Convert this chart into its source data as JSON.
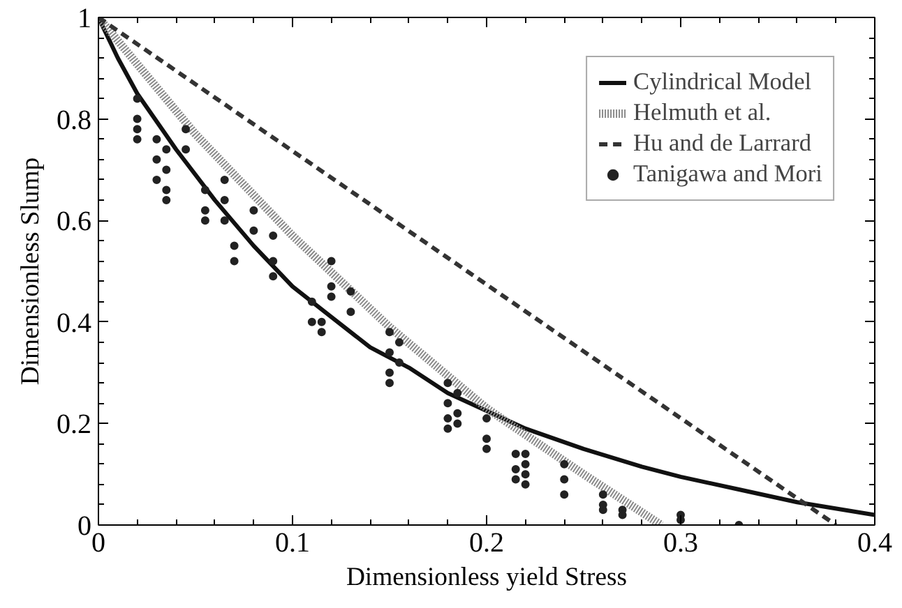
{
  "chart_data": {
    "type": "line",
    "xlabel": "Dimensionless yield Stress",
    "ylabel": "Dimensionless Slump",
    "xlim": [
      0,
      0.4
    ],
    "ylim": [
      0,
      1
    ],
    "xticks": [
      0,
      0.1,
      0.2,
      0.3,
      0.4
    ],
    "yticks": [
      0,
      0.2,
      0.4,
      0.6,
      0.8,
      1
    ],
    "grid": false,
    "legend": "top right",
    "series": [
      {
        "name": "Cylindrical Model",
        "line_style": "solid",
        "color": "#111111",
        "x": [
          0,
          0.01,
          0.02,
          0.04,
          0.06,
          0.08,
          0.1,
          0.12,
          0.14,
          0.16,
          0.18,
          0.2,
          0.22,
          0.25,
          0.28,
          0.3,
          0.33,
          0.36,
          0.4
        ],
        "values": [
          1,
          0.92,
          0.85,
          0.74,
          0.64,
          0.55,
          0.47,
          0.41,
          0.35,
          0.31,
          0.26,
          0.225,
          0.19,
          0.15,
          0.115,
          0.095,
          0.07,
          0.045,
          0.02
        ]
      },
      {
        "name": "Helmuth et al.",
        "line_style": "dotted",
        "color": "#8a8a8a",
        "x": [
          0,
          0.05,
          0.1,
          0.15,
          0.2,
          0.25,
          0.29
        ],
        "values": [
          1,
          0.77,
          0.57,
          0.39,
          0.23,
          0.1,
          0
        ]
      },
      {
        "name": "Hu and de Larrard",
        "line_style": "dashed",
        "color": "#333333",
        "x": [
          0,
          0.38
        ],
        "values": [
          1,
          0
        ]
      },
      {
        "name": "Tanigawa and Mori",
        "type": "scatter",
        "marker": "circle",
        "color": "#222222",
        "x": [
          0.02,
          0.02,
          0.02,
          0.02,
          0.03,
          0.03,
          0.03,
          0.035,
          0.035,
          0.035,
          0.035,
          0.045,
          0.045,
          0.055,
          0.055,
          0.055,
          0.065,
          0.065,
          0.065,
          0.07,
          0.07,
          0.08,
          0.08,
          0.09,
          0.09,
          0.09,
          0.11,
          0.11,
          0.115,
          0.115,
          0.12,
          0.12,
          0.12,
          0.13,
          0.13,
          0.15,
          0.15,
          0.15,
          0.15,
          0.155,
          0.155,
          0.18,
          0.18,
          0.18,
          0.18,
          0.185,
          0.185,
          0.185,
          0.2,
          0.2,
          0.2,
          0.215,
          0.215,
          0.215,
          0.22,
          0.22,
          0.22,
          0.22,
          0.24,
          0.24,
          0.24,
          0.26,
          0.26,
          0.26,
          0.27,
          0.27,
          0.3,
          0.3,
          0.33
        ],
        "values": [
          0.84,
          0.8,
          0.78,
          0.76,
          0.76,
          0.72,
          0.68,
          0.74,
          0.7,
          0.66,
          0.64,
          0.78,
          0.74,
          0.66,
          0.62,
          0.6,
          0.68,
          0.64,
          0.6,
          0.55,
          0.52,
          0.62,
          0.58,
          0.57,
          0.52,
          0.49,
          0.44,
          0.4,
          0.4,
          0.38,
          0.52,
          0.47,
          0.45,
          0.46,
          0.42,
          0.38,
          0.34,
          0.3,
          0.28,
          0.36,
          0.32,
          0.28,
          0.24,
          0.21,
          0.19,
          0.26,
          0.22,
          0.2,
          0.21,
          0.17,
          0.15,
          0.14,
          0.11,
          0.09,
          0.14,
          0.12,
          0.1,
          0.08,
          0.12,
          0.09,
          0.06,
          0.06,
          0.04,
          0.03,
          0.03,
          0.02,
          0.02,
          0.01,
          0
        ]
      }
    ]
  }
}
